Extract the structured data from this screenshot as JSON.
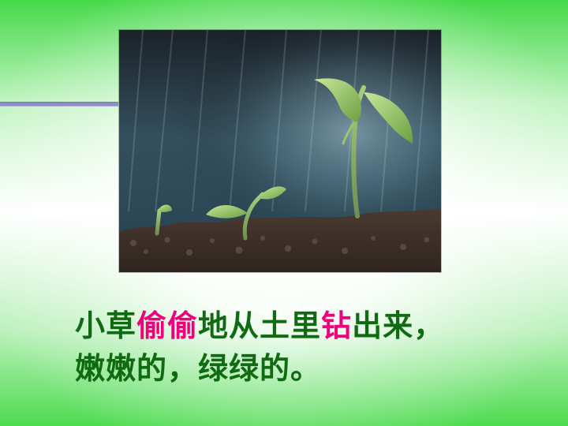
{
  "slide": {
    "line1": {
      "part1": "小草",
      "part2": "偷偷",
      "part3": "地从土里",
      "part4": "钻",
      "part5": "出来，"
    },
    "line2": "嫩嫩的，绿绿的。"
  },
  "colors": {
    "background_green": "#46d94a",
    "caption_green": "#0f6a12",
    "highlight_pink": "#f1007e",
    "bar_blue": "#8b8fc3"
  }
}
